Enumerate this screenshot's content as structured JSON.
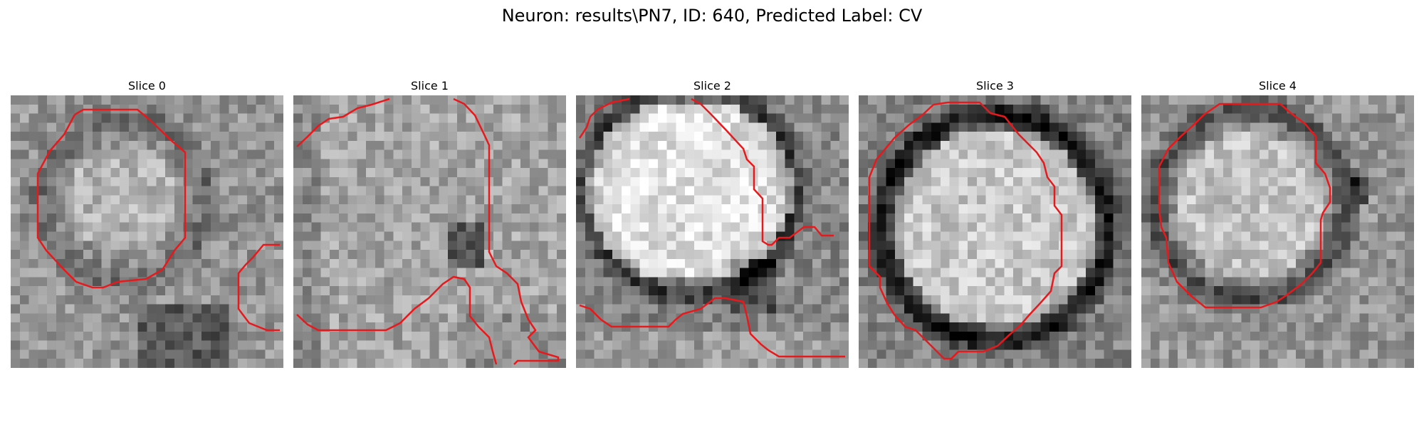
{
  "figure": {
    "title": "Neuron: results\\PN7, ID: 640, Predicted Label: CV",
    "contour_color": "#e8191c"
  },
  "panels": [
    {
      "title": "Slice 0"
    },
    {
      "title": "Slice 1"
    },
    {
      "title": "Slice 2"
    },
    {
      "title": "Slice 3"
    },
    {
      "title": "Slice 4"
    }
  ]
}
